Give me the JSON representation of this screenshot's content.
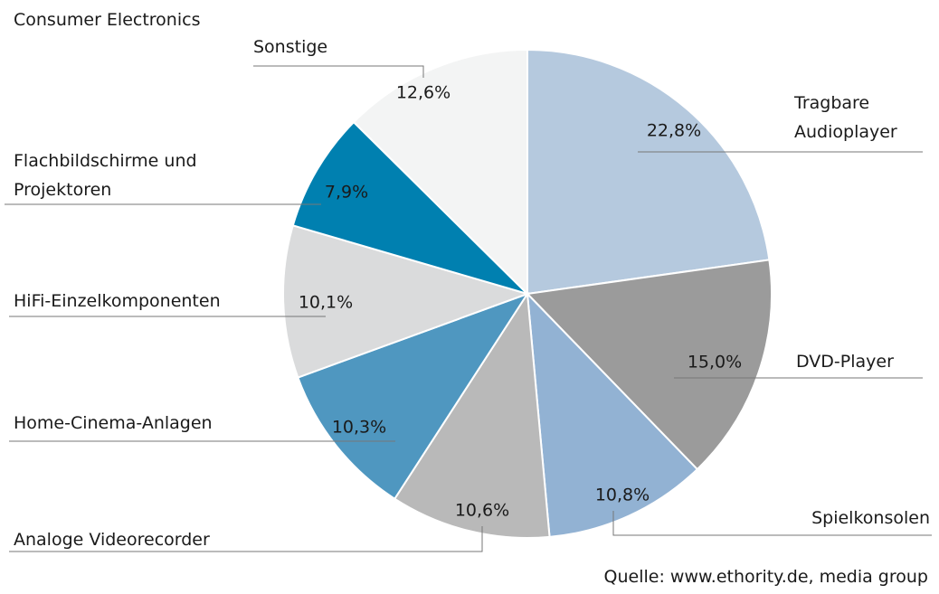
{
  "chart_data": {
    "type": "pie",
    "title": "Consumer Electronics",
    "categories": [
      "Tragbare Audioplayer",
      "DVD-Player",
      "Spielkonsolen",
      "Analoge Videorecorder",
      "Home-Cinema-Anlagen",
      "HiFi-Einzelkomponenten",
      "Flachbildschirme und Projektoren",
      "Sonstige"
    ],
    "values": [
      22.8,
      15.0,
      10.8,
      10.6,
      10.3,
      10.1,
      7.9,
      12.6
    ],
    "value_labels": [
      "22,8%",
      "15,0%",
      "10,8%",
      "10,6%",
      "10,3%",
      "10,1%",
      "7,9%",
      "12,6%"
    ],
    "colors": [
      "#b5c9de",
      "#9b9b9b",
      "#92b2d3",
      "#b9b9b9",
      "#4f97c0",
      "#dadbdc",
      "#0080b0",
      "#f3f4f4"
    ],
    "source": "Quelle: www.ethority.de, media group"
  }
}
